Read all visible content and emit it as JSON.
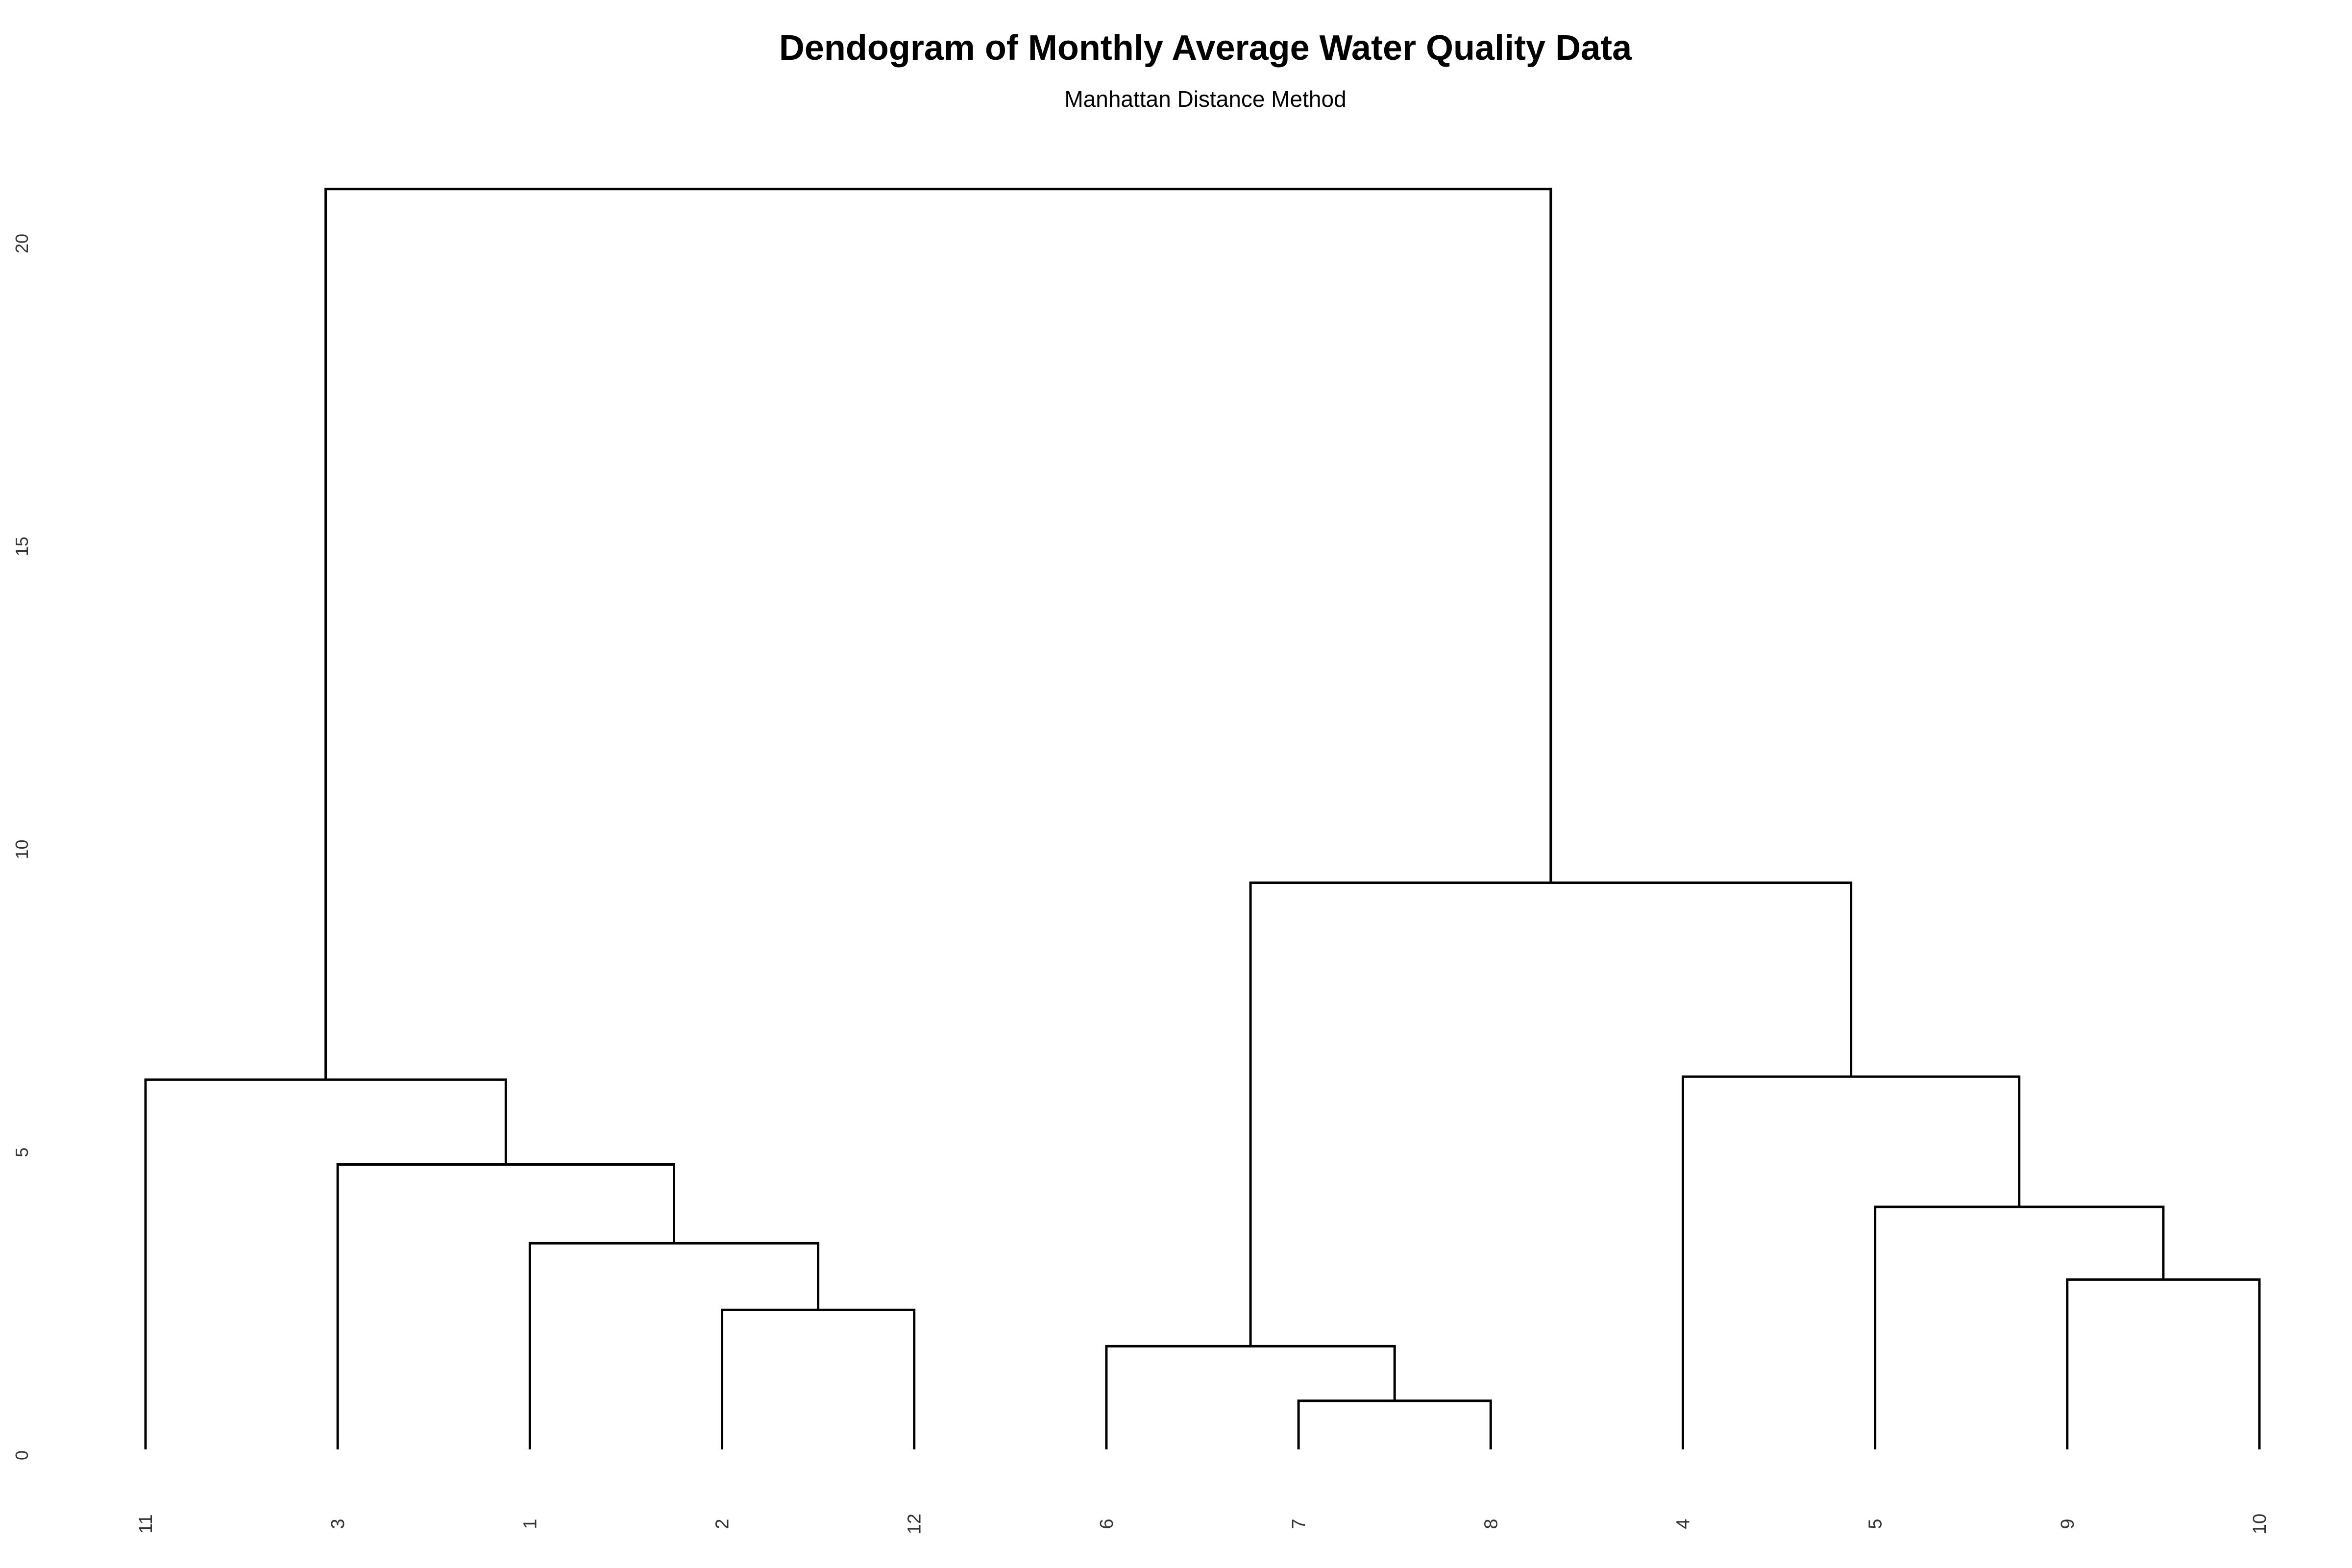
{
  "chart_data": {
    "type": "dendrogram",
    "title": "Dendogram of Monthly Average Water Quality Data",
    "subtitle": "Manhattan Distance Method",
    "xlabel": "",
    "ylabel": "",
    "ylim": [
      0,
      21
    ],
    "y_ticks": [
      0,
      5,
      10,
      15,
      20
    ],
    "grid": false,
    "leaf_order": [
      "11",
      "3",
      "1",
      "2",
      "12",
      "6",
      "7",
      "8",
      "4",
      "5",
      "9",
      "10"
    ],
    "merges": [
      {
        "id": "m1",
        "left": "7",
        "right": "8",
        "height": 0.9
      },
      {
        "id": "m2",
        "left": "2",
        "right": "12",
        "height": 2.4
      },
      {
        "id": "m3",
        "left": "6",
        "right": "m1",
        "height": 1.8
      },
      {
        "id": "m4",
        "left": "9",
        "right": "10",
        "height": 2.9
      },
      {
        "id": "m5",
        "left": "1",
        "right": "m2",
        "height": 3.5
      },
      {
        "id": "m6",
        "left": "5",
        "right": "m4",
        "height": 4.1
      },
      {
        "id": "m7",
        "left": "3",
        "right": "m5",
        "height": 4.8
      },
      {
        "id": "m8",
        "left": "11",
        "right": "m7",
        "height": 6.2
      },
      {
        "id": "m9",
        "left": "4",
        "right": "m6",
        "height": 6.25
      },
      {
        "id": "m10",
        "left": "m3",
        "right": "m9",
        "height": 9.45
      },
      {
        "id": "m11",
        "left": "m8",
        "right": "m10",
        "height": 20.9
      }
    ]
  }
}
